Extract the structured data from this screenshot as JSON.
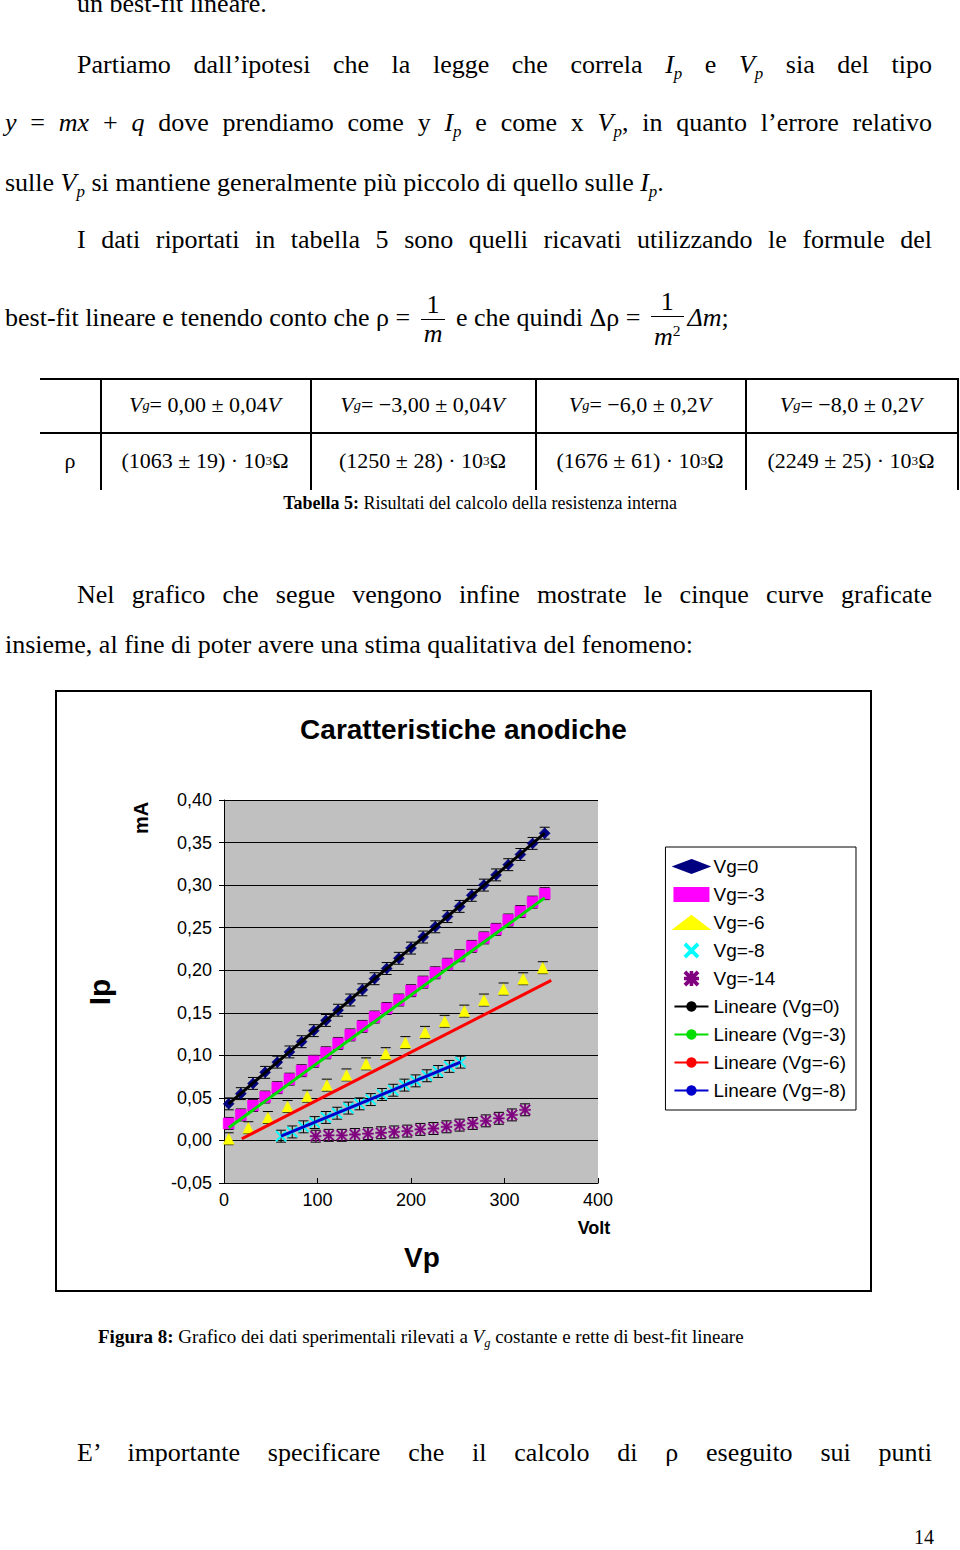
{
  "lines_top": [
    [
      "un best-fit lineare."
    ],
    [
      "Partiamo dall’ipotesi che la legge che correla ",
      {
        "var": "I",
        "sub": "p"
      },
      " e ",
      {
        "var": "V",
        "sub": "p"
      },
      " sia del tipo"
    ],
    [
      {
        "var": "y"
      },
      " = ",
      {
        "var": "mx"
      },
      " + ",
      {
        "var": "q"
      },
      " dove prendiamo come y ",
      {
        "var": "I",
        "sub": "p"
      },
      " e come x ",
      {
        "var": "V",
        "sub": "p"
      },
      ", in quanto l’errore relativo"
    ],
    [
      "sulle ",
      {
        "var": "V",
        "sub": "p"
      },
      " si mantiene generalmente più piccolo di quello sulle ",
      {
        "var": "I",
        "sub": "p"
      },
      "."
    ],
    [
      "I dati riportati in tabella 5 sono quelli ricavati utilizzando le formule del"
    ],
    [
      "best-fit lineare e tenendo conto che ρ = ",
      {
        "frac": [
          "1",
          "m"
        ]
      },
      " e che quindi  Δρ = ",
      {
        "frac": [
          "1",
          "m"
        ],
        "den_sup": "2"
      },
      {
        "var": "Δm"
      },
      ";"
    ]
  ],
  "table": {
    "header": [
      [
        {
          "var": "V",
          "sub": "g"
        },
        " = 0,00 ± 0,04",
        {
          "var": "V"
        }
      ],
      [
        {
          "var": "V",
          "sub": "g"
        },
        " = −3,00 ± 0,04",
        {
          "var": "V"
        }
      ],
      [
        {
          "var": "V",
          "sub": "g"
        },
        " = −6,0 ± 0,2",
        {
          "var": "V"
        }
      ],
      [
        {
          "var": "V",
          "sub": "g"
        },
        " = −8,0 ± 0,2",
        {
          "var": "V"
        }
      ]
    ],
    "row_label": "ρ",
    "row": [
      [
        "(1063 ± 19) · 10",
        {
          "sup": "3"
        },
        " Ω"
      ],
      [
        "(1250 ± 28) · 10",
        {
          "sup": "3"
        },
        " Ω"
      ],
      [
        "(1676 ± 61) · 10",
        {
          "sup": "3"
        },
        " Ω"
      ],
      [
        "(2249 ± 25) · 10",
        {
          "sup": "3"
        },
        " Ω"
      ]
    ]
  },
  "table_caption": [
    {
      "b": "Tabella 5:"
    },
    " Risultati del calcolo della resistenza interna"
  ],
  "lines_middle": [
    [
      "Nel grafico che segue vengono infine mostrate le cinque curve graficate"
    ],
    [
      "insieme, al fine di poter avere una stima qualitativa del fenomeno:"
    ]
  ],
  "chart_data": {
    "type": "scatter",
    "title": "Caratteristiche anodiche",
    "xlabel": "Vp",
    "xlabel_unit": "Volt",
    "ylabel": "Ip",
    "ylabel_unit": "mA",
    "xlim": [
      0,
      400
    ],
    "xticks": [
      0,
      100,
      200,
      300,
      400
    ],
    "ylim": [
      -0.05,
      0.4
    ],
    "yticks": [
      {
        "value": -0.05,
        "label": "-0,05"
      },
      {
        "value": 0,
        "label": "0,00"
      },
      {
        "value": 0.05,
        "label": "0,05"
      },
      {
        "value": 0.1,
        "label": "0,10"
      },
      {
        "value": 0.15,
        "label": "0,15"
      },
      {
        "value": 0.2,
        "label": "0,20"
      },
      {
        "value": 0.25,
        "label": "0,25"
      },
      {
        "value": 0.3,
        "label": "0,30"
      },
      {
        "value": 0.35,
        "label": "0,35"
      },
      {
        "value": 0.4,
        "label": "0,40"
      }
    ],
    "grid": true,
    "legend": "right",
    "series": [
      {
        "name": "Vg=0",
        "type": "scatter",
        "marker": "diamond",
        "color": "#000080",
        "y_error": 0.007,
        "x": [
          5,
          18,
          31,
          44,
          57,
          70,
          83,
          96,
          109,
          122,
          135,
          148,
          161,
          174,
          187,
          200,
          213,
          226,
          239,
          252,
          265,
          278,
          291,
          304,
          317,
          330,
          343
        ],
        "values": [
          0.043,
          0.055,
          0.067,
          0.08,
          0.092,
          0.104,
          0.116,
          0.129,
          0.141,
          0.153,
          0.165,
          0.177,
          0.19,
          0.202,
          0.214,
          0.226,
          0.239,
          0.251,
          0.263,
          0.275,
          0.288,
          0.3,
          0.312,
          0.324,
          0.336,
          0.349,
          0.361
        ]
      },
      {
        "name": "Vg=-3",
        "type": "scatter",
        "marker": "square",
        "color": "#ff00ff",
        "y_error": 0.007,
        "x": [
          5,
          18,
          31,
          44,
          57,
          70,
          83,
          96,
          109,
          122,
          135,
          148,
          161,
          174,
          187,
          200,
          213,
          226,
          239,
          252,
          265,
          278,
          291,
          304,
          317,
          330,
          343
        ],
        "values": [
          0.02,
          0.03,
          0.041,
          0.051,
          0.062,
          0.072,
          0.082,
          0.093,
          0.103,
          0.114,
          0.124,
          0.134,
          0.145,
          0.155,
          0.165,
          0.176,
          0.186,
          0.197,
          0.207,
          0.217,
          0.228,
          0.238,
          0.248,
          0.259,
          0.269,
          0.28,
          0.29
        ]
      },
      {
        "name": "Vg=-6",
        "type": "scatter",
        "marker": "triangle",
        "color": "#ffff00",
        "y_error": 0.007,
        "x": [
          5,
          26,
          47,
          68,
          89,
          110,
          131,
          152,
          173,
          194,
          215,
          236,
          257,
          278,
          299,
          320,
          341
        ],
        "values": [
          0.002,
          0.015,
          0.027,
          0.04,
          0.052,
          0.065,
          0.077,
          0.09,
          0.102,
          0.115,
          0.127,
          0.14,
          0.152,
          0.165,
          0.178,
          0.19,
          0.203
        ]
      },
      {
        "name": "Vg=-8",
        "type": "scatter",
        "marker": "x",
        "color": "#00ffff",
        "y_error": 0.007,
        "x": [
          61,
          73,
          85,
          97,
          109,
          121,
          133,
          145,
          157,
          169,
          181,
          193,
          205,
          217,
          229,
          241,
          253
        ],
        "values": [
          0.005,
          0.01,
          0.016,
          0.021,
          0.027,
          0.032,
          0.038,
          0.043,
          0.048,
          0.054,
          0.059,
          0.065,
          0.07,
          0.076,
          0.081,
          0.087,
          0.092
        ]
      },
      {
        "name": "Vg=-14",
        "type": "scatter",
        "marker": "star",
        "color": "#800080",
        "y_error": 0.007,
        "x": [
          98,
          112,
          126,
          140,
          154,
          168,
          182,
          196,
          210,
          224,
          238,
          252,
          266,
          280,
          294,
          308,
          322
        ],
        "values": [
          0.005,
          0.006,
          0.006,
          0.007,
          0.008,
          0.009,
          0.01,
          0.011,
          0.013,
          0.014,
          0.016,
          0.018,
          0.02,
          0.023,
          0.026,
          0.03,
          0.036
        ]
      },
      {
        "name": "Lineare (Vg=0)",
        "type": "line",
        "line_style": "solid",
        "color": "#000000",
        "x": [
          5,
          343
        ],
        "values": [
          0.043,
          0.361
        ]
      },
      {
        "name": "Lineare (Vg=-3)",
        "type": "line",
        "line_style": "solid",
        "color": "#00dd00",
        "x": [
          5,
          343
        ],
        "values": [
          0.015,
          0.285
        ]
      },
      {
        "name": "Lineare (Vg=-6)",
        "type": "line",
        "line_style": "solid",
        "color": "#ff0000",
        "x": [
          19,
          350
        ],
        "values": [
          0.002,
          0.188
        ]
      },
      {
        "name": "Lineare (Vg=-8)",
        "type": "line",
        "line_style": "solid",
        "color": "#0000cc",
        "x": [
          61,
          253
        ],
        "values": [
          0.005,
          0.092
        ]
      }
    ]
  },
  "figure_caption": [
    {
      "b": "Figura 8:"
    },
    " Grafico dei dati sperimentali rilevati a ",
    {
      "var": "V",
      "sub": "g"
    },
    " costante e rette di best-fit lineare"
  ],
  "lines_bottom": [
    [
      "E’ importante specificare che il calcolo di ρ eseguito sui punti"
    ]
  ],
  "page_number": "14"
}
